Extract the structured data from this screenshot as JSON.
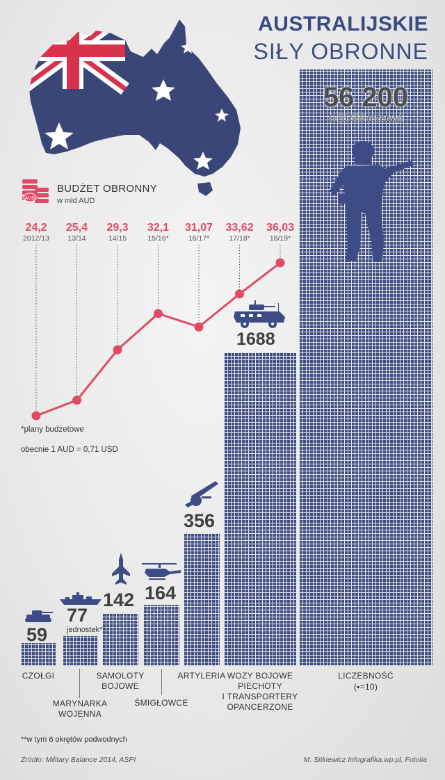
{
  "header": {
    "title_line1": "AUSTRALIJSKIE",
    "title_line2": "SIŁY OBRONNE"
  },
  "colors": {
    "navy": "#3e4c86",
    "budget_red": "#e04a65",
    "flag_red": "#d8324c"
  },
  "budget": {
    "icon": "stacked-coins-icon",
    "icon_label": "AUD",
    "title": "BUDŻET OBRONNY",
    "unit": "w mld AUD",
    "footnote": "*plany budżetowe",
    "exchange": "obecnie 1 AUD = 0,71 USD"
  },
  "headcount": {
    "value": "56 200",
    "reserve": "(+28 550 rezerwy)"
  },
  "categories_labels": {
    "tanks": "CZOŁGI",
    "navy": [
      "MARYNARKA",
      "WOJENNA"
    ],
    "aircraft": [
      "SAMOLOTY",
      "BOJOWE"
    ],
    "helicopters": "ŚMIGŁOWCE",
    "artillery": "ARTYLERIA",
    "ifv": [
      "WOZY BOJOWE",
      "PIECHOTY",
      "I TRANSPORTERY",
      "OPANCERZONE"
    ],
    "personnel": "LICZEBNOŚĆ",
    "personnel_scale": "(▪=10)"
  },
  "navy_unit": "jednostek**",
  "navy_footnote": "**w tym 6 okrętów podwodnych",
  "footer": {
    "source": "Źródło: Military Balance 2014, ASPI",
    "credit": "M. Sitkiewicz Infografika.wp.pl, Fotolia"
  },
  "chart_data": [
    {
      "type": "line",
      "title": "BUDŻET OBRONNY",
      "ylabel": "w mld AUD",
      "x": [
        "2012/13",
        "13/14",
        "14/15",
        "15/16*",
        "16/17*",
        "17/18*",
        "18/19*"
      ],
      "values": [
        24.2,
        25.4,
        29.3,
        32.1,
        31.07,
        33.62,
        36.03
      ],
      "labels": [
        "24,2",
        "25,4",
        "29,3",
        "32,1",
        "31,07",
        "33,62",
        "36,03"
      ]
    },
    {
      "type": "bar",
      "categories": [
        "CZOŁGI",
        "MARYNARKA WOJENNA",
        "SAMOLOTY BOJOWE",
        "ŚMIGŁOWCE",
        "ARTYLERIA",
        "WOZY BOJOWE PIECHOTY I TRANSPORTERY OPANCERZONE"
      ],
      "values": [
        59,
        77,
        142,
        164,
        356,
        1688
      ],
      "labels": [
        "59",
        "77",
        "142",
        "164",
        "356",
        "1688"
      ],
      "icons": [
        "tank-icon",
        "warship-icon",
        "fighter-jet-icon",
        "helicopter-icon",
        "howitzer-icon",
        "armored-vehicle-icon"
      ]
    }
  ]
}
